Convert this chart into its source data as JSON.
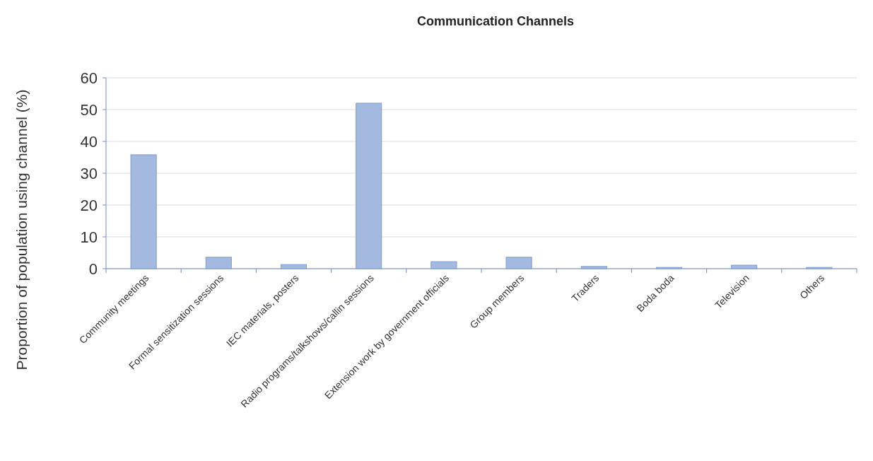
{
  "chart_data": {
    "type": "bar",
    "title": "Communication Channels",
    "ylabel": "Proportion of population using channel (%)",
    "categories": [
      "Community meetings",
      "Formal sensitization sessions",
      "IEC materials, posters",
      "Radio programs/talkshows/callin sessions",
      "Extension work by government officials",
      "Group members",
      "Traders",
      "Boda boda",
      "Television",
      "Others"
    ],
    "values": [
      35.8,
      3.6,
      1.3,
      52,
      2.2,
      3.6,
      0.7,
      0.4,
      1.1,
      0.4
    ],
    "color": "#a3b9e0",
    "ylim": [
      0,
      60
    ],
    "yticks": [
      0,
      10,
      20,
      30,
      40,
      50,
      60
    ],
    "grid": "y"
  }
}
